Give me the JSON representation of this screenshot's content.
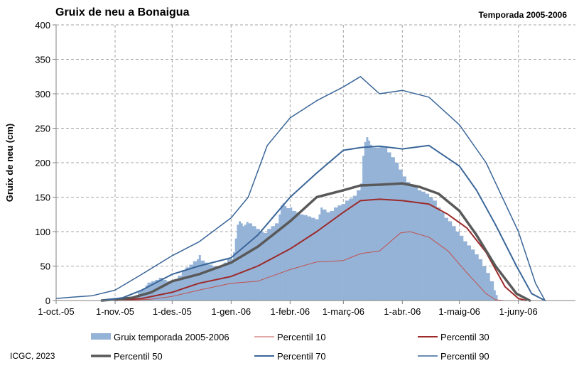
{
  "chart_data": {
    "type": "area",
    "title": "Gruix de neu a Bonaigua",
    "subtitle": "Temporada 2005-2006",
    "ylabel": "Gruix de neu (cm)",
    "xlabel": "",
    "ylim": [
      0,
      400
    ],
    "yticks": [
      0,
      50,
      100,
      150,
      200,
      250,
      300,
      350,
      400
    ],
    "xlim": [
      "2005-10-01",
      "2006-07-01"
    ],
    "xticks": [
      {
        "date": "2005-10-01",
        "label": "1-oct.-05"
      },
      {
        "date": "2005-11-01",
        "label": "1-nov.-05"
      },
      {
        "date": "2005-12-01",
        "label": "1-des.-05"
      },
      {
        "date": "2006-01-01",
        "label": "1-gen.-06"
      },
      {
        "date": "2006-02-01",
        "label": "1-febr.-06"
      },
      {
        "date": "2006-03-01",
        "label": "1-març-06"
      },
      {
        "date": "2006-04-01",
        "label": "1-abr.-06"
      },
      {
        "date": "2006-05-01",
        "label": "1-maig-06"
      },
      {
        "date": "2006-06-01",
        "label": "1-juny-06"
      }
    ],
    "grid": true,
    "legend": "bottom",
    "credit": "ICGC, 2023",
    "bars": {
      "name": "Gruix temporada 2005-2006",
      "color": "#95b3d7",
      "points": [
        [
          "2005-11-10",
          0
        ],
        [
          "2005-11-11",
          2
        ],
        [
          "2005-11-12",
          8
        ],
        [
          "2005-11-13",
          12
        ],
        [
          "2005-11-14",
          14
        ],
        [
          "2005-11-15",
          16
        ],
        [
          "2005-11-16",
          18
        ],
        [
          "2005-11-17",
          22
        ],
        [
          "2005-11-18",
          26
        ],
        [
          "2005-11-20",
          28
        ],
        [
          "2005-11-22",
          30
        ],
        [
          "2005-11-24",
          33
        ],
        [
          "2005-11-26",
          30
        ],
        [
          "2005-11-28",
          28
        ],
        [
          "2005-11-30",
          27
        ],
        [
          "2005-12-02",
          30
        ],
        [
          "2005-12-04",
          36
        ],
        [
          "2005-12-06",
          44
        ],
        [
          "2005-12-08",
          48
        ],
        [
          "2005-12-10",
          52
        ],
        [
          "2005-12-12",
          57
        ],
        [
          "2005-12-14",
          60
        ],
        [
          "2005-12-15",
          66
        ],
        [
          "2005-12-16",
          58
        ],
        [
          "2005-12-18",
          55
        ],
        [
          "2005-12-20",
          52
        ],
        [
          "2005-12-22",
          50
        ],
        [
          "2005-12-24",
          49
        ],
        [
          "2005-12-26",
          50
        ],
        [
          "2005-12-28",
          55
        ],
        [
          "2005-12-30",
          60
        ],
        [
          "2006-01-02",
          70
        ],
        [
          "2006-01-03",
          90
        ],
        [
          "2006-01-04",
          110
        ],
        [
          "2006-01-05",
          115
        ],
        [
          "2006-01-06",
          112
        ],
        [
          "2006-01-07",
          108
        ],
        [
          "2006-01-08",
          110
        ],
        [
          "2006-01-09",
          114
        ],
        [
          "2006-01-10",
          112
        ],
        [
          "2006-01-12",
          108
        ],
        [
          "2006-01-14",
          104
        ],
        [
          "2006-01-16",
          100
        ],
        [
          "2006-01-18",
          98
        ],
        [
          "2006-01-20",
          104
        ],
        [
          "2006-01-22",
          108
        ],
        [
          "2006-01-24",
          112
        ],
        [
          "2006-01-26",
          125
        ],
        [
          "2006-01-27",
          138
        ],
        [
          "2006-01-28",
          141
        ],
        [
          "2006-01-29",
          137
        ],
        [
          "2006-01-30",
          134
        ],
        [
          "2006-02-01",
          135
        ],
        [
          "2006-02-02",
          130
        ],
        [
          "2006-02-04",
          128
        ],
        [
          "2006-02-06",
          125
        ],
        [
          "2006-02-08",
          124
        ],
        [
          "2006-02-10",
          122
        ],
        [
          "2006-02-12",
          120
        ],
        [
          "2006-02-14",
          118
        ],
        [
          "2006-02-16",
          125
        ],
        [
          "2006-02-17",
          135
        ],
        [
          "2006-02-18",
          132
        ],
        [
          "2006-02-20",
          128
        ],
        [
          "2006-02-22",
          130
        ],
        [
          "2006-02-24",
          135
        ],
        [
          "2006-02-26",
          138
        ],
        [
          "2006-02-28",
          140
        ],
        [
          "2006-03-02",
          145
        ],
        [
          "2006-03-04",
          148
        ],
        [
          "2006-03-06",
          152
        ],
        [
          "2006-03-08",
          160
        ],
        [
          "2006-03-10",
          170
        ],
        [
          "2006-03-11",
          210
        ],
        [
          "2006-03-12",
          230
        ],
        [
          "2006-03-13",
          237
        ],
        [
          "2006-03-14",
          232
        ],
        [
          "2006-03-15",
          226
        ],
        [
          "2006-03-16",
          222
        ],
        [
          "2006-03-18",
          222
        ],
        [
          "2006-03-20",
          224
        ],
        [
          "2006-03-22",
          222
        ],
        [
          "2006-03-24",
          215
        ],
        [
          "2006-03-26",
          208
        ],
        [
          "2006-03-28",
          200
        ],
        [
          "2006-03-30",
          190
        ],
        [
          "2006-04-01",
          180
        ],
        [
          "2006-04-03",
          172
        ],
        [
          "2006-04-05",
          168
        ],
        [
          "2006-04-07",
          165
        ],
        [
          "2006-04-09",
          160
        ],
        [
          "2006-04-11",
          158
        ],
        [
          "2006-04-13",
          155
        ],
        [
          "2006-04-15",
          150
        ],
        [
          "2006-04-17",
          145
        ],
        [
          "2006-04-19",
          135
        ],
        [
          "2006-04-21",
          128
        ],
        [
          "2006-04-23",
          120
        ],
        [
          "2006-04-25",
          115
        ],
        [
          "2006-04-27",
          108
        ],
        [
          "2006-04-29",
          100
        ],
        [
          "2006-05-01",
          94
        ],
        [
          "2006-05-03",
          86
        ],
        [
          "2006-05-05",
          80
        ],
        [
          "2006-05-07",
          74
        ],
        [
          "2006-05-09",
          67
        ],
        [
          "2006-05-11",
          60
        ],
        [
          "2006-05-13",
          50
        ],
        [
          "2006-05-15",
          40
        ],
        [
          "2006-05-17",
          28
        ],
        [
          "2006-05-19",
          15
        ],
        [
          "2006-05-20",
          8
        ],
        [
          "2006-05-21",
          0
        ]
      ]
    },
    "series": [
      {
        "name": "Percentil 10",
        "color": "#c0504d",
        "width": 1,
        "points": [
          [
            "2005-11-05",
            0
          ],
          [
            "2005-11-20",
            2
          ],
          [
            "2005-12-01",
            6
          ],
          [
            "2005-12-15",
            15
          ],
          [
            "2006-01-01",
            25
          ],
          [
            "2006-01-15",
            28
          ],
          [
            "2006-02-01",
            45
          ],
          [
            "2006-02-15",
            56
          ],
          [
            "2006-03-01",
            58
          ],
          [
            "2006-03-10",
            68
          ],
          [
            "2006-03-20",
            72
          ],
          [
            "2006-03-31",
            98
          ],
          [
            "2006-04-05",
            100
          ],
          [
            "2006-04-15",
            92
          ],
          [
            "2006-04-25",
            72
          ],
          [
            "2006-05-05",
            40
          ],
          [
            "2006-05-15",
            10
          ],
          [
            "2006-05-20",
            1
          ],
          [
            "2006-05-25",
            0
          ]
        ]
      },
      {
        "name": "Percentil 30",
        "color": "#9c2a2a",
        "width": 2,
        "points": [
          [
            "2005-11-01",
            0
          ],
          [
            "2005-11-15",
            3
          ],
          [
            "2005-12-01",
            12
          ],
          [
            "2005-12-15",
            25
          ],
          [
            "2006-01-01",
            35
          ],
          [
            "2006-01-15",
            50
          ],
          [
            "2006-02-01",
            75
          ],
          [
            "2006-02-15",
            100
          ],
          [
            "2006-03-01",
            128
          ],
          [
            "2006-03-10",
            145
          ],
          [
            "2006-03-20",
            147
          ],
          [
            "2006-04-01",
            145
          ],
          [
            "2006-04-15",
            140
          ],
          [
            "2006-04-25",
            125
          ],
          [
            "2006-05-05",
            105
          ],
          [
            "2006-05-15",
            70
          ],
          [
            "2006-05-25",
            20
          ],
          [
            "2006-06-01",
            3
          ],
          [
            "2006-06-05",
            0
          ]
        ]
      },
      {
        "name": "Percentil 50",
        "color": "#595959",
        "width": 3.5,
        "points": [
          [
            "2005-10-25",
            0
          ],
          [
            "2005-11-10",
            4
          ],
          [
            "2005-11-20",
            12
          ],
          [
            "2005-12-01",
            28
          ],
          [
            "2005-12-15",
            38
          ],
          [
            "2006-01-01",
            55
          ],
          [
            "2006-01-15",
            78
          ],
          [
            "2006-02-01",
            115
          ],
          [
            "2006-02-15",
            150
          ],
          [
            "2006-03-01",
            160
          ],
          [
            "2006-03-10",
            167
          ],
          [
            "2006-03-20",
            168
          ],
          [
            "2006-04-01",
            170
          ],
          [
            "2006-04-10",
            165
          ],
          [
            "2006-04-20",
            155
          ],
          [
            "2006-05-01",
            130
          ],
          [
            "2006-05-10",
            95
          ],
          [
            "2006-05-20",
            50
          ],
          [
            "2006-05-31",
            10
          ],
          [
            "2006-06-07",
            0
          ]
        ]
      },
      {
        "name": "Percentil 70",
        "color": "#3a6699",
        "width": 2,
        "points": [
          [
            "2005-10-25",
            0
          ],
          [
            "2005-11-05",
            4
          ],
          [
            "2005-11-15",
            15
          ],
          [
            "2005-12-01",
            38
          ],
          [
            "2005-12-15",
            50
          ],
          [
            "2006-01-01",
            62
          ],
          [
            "2006-01-15",
            95
          ],
          [
            "2006-02-01",
            150
          ],
          [
            "2006-02-15",
            185
          ],
          [
            "2006-03-01",
            218
          ],
          [
            "2006-03-10",
            222
          ],
          [
            "2006-03-20",
            224
          ],
          [
            "2006-04-01",
            220
          ],
          [
            "2006-04-15",
            225
          ],
          [
            "2006-05-01",
            195
          ],
          [
            "2006-05-10",
            160
          ],
          [
            "2006-05-20",
            110
          ],
          [
            "2006-05-31",
            50
          ],
          [
            "2006-06-08",
            10
          ],
          [
            "2006-06-15",
            0
          ]
        ]
      },
      {
        "name": "Percentil 90",
        "color": "#3a6699",
        "width": 1.5,
        "points": [
          [
            "2005-10-01",
            3
          ],
          [
            "2005-10-10",
            5
          ],
          [
            "2005-10-20",
            7
          ],
          [
            "2005-11-01",
            15
          ],
          [
            "2005-11-15",
            38
          ],
          [
            "2005-12-01",
            65
          ],
          [
            "2005-12-15",
            85
          ],
          [
            "2006-01-01",
            120
          ],
          [
            "2006-01-10",
            150
          ],
          [
            "2006-01-20",
            225
          ],
          [
            "2006-02-01",
            265
          ],
          [
            "2006-02-15",
            290
          ],
          [
            "2006-03-01",
            310
          ],
          [
            "2006-03-10",
            325
          ],
          [
            "2006-03-20",
            300
          ],
          [
            "2006-04-01",
            305
          ],
          [
            "2006-04-15",
            295
          ],
          [
            "2006-05-01",
            255
          ],
          [
            "2006-05-15",
            200
          ],
          [
            "2006-06-01",
            100
          ],
          [
            "2006-06-10",
            25
          ],
          [
            "2006-06-15",
            0
          ]
        ]
      }
    ]
  }
}
